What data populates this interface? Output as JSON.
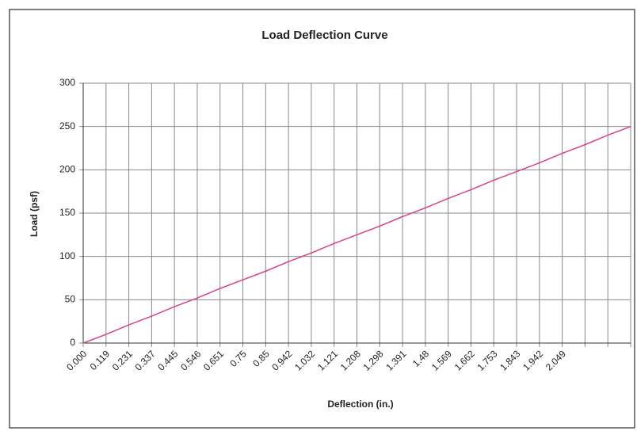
{
  "chart_data": {
    "type": "line",
    "title": "Load Deflection Curve",
    "x_label": "Deflection (in.)",
    "y_label": "Load (psf)",
    "categories": [
      "0.000",
      "0.119",
      "0.231",
      "0.337",
      "0.445",
      "0.546",
      "0.651",
      "0.75",
      "0.85",
      "0.942",
      "1.032",
      "1.121",
      "1.208",
      "1.298",
      "1.391",
      "1.48",
      "1.569",
      "1.662",
      "1.753",
      "1.843",
      "1.942",
      "2.049",
      null,
      null,
      null
    ],
    "series": [
      {
        "name": "Load",
        "color": "#d8428c",
        "values": [
          0,
          10,
          21,
          31,
          42,
          52,
          63,
          73,
          83,
          94,
          104,
          115,
          125,
          135,
          146,
          156,
          167,
          177,
          188,
          198,
          208,
          219,
          229,
          240,
          250
        ]
      }
    ],
    "ylim": [
      0,
      300
    ],
    "yticks": [
      0,
      50,
      100,
      150,
      200,
      250,
      300
    ],
    "grid": true
  }
}
